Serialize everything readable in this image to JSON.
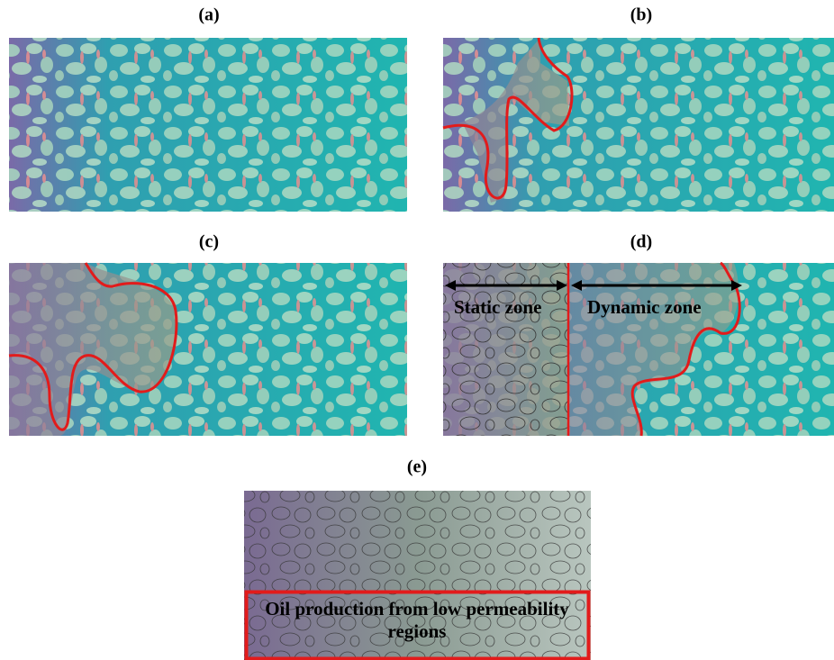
{
  "panels": [
    {
      "label": "(a)"
    },
    {
      "label": "(b)"
    },
    {
      "label": "(c)"
    },
    {
      "label": "(d)",
      "annotations": [
        "Static zone",
        "Dynamic zone"
      ]
    },
    {
      "label": "(e)",
      "annotation": "Oil production from low permeability regions"
    }
  ]
}
